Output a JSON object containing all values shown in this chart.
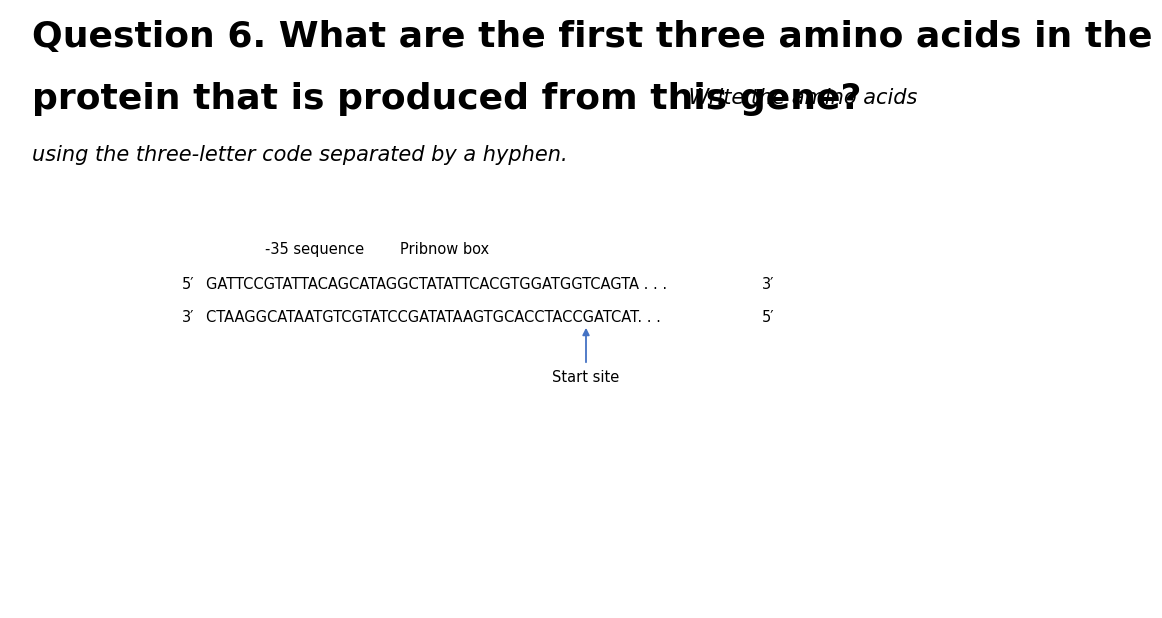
{
  "title_line1": "Question 6. What are the first three amino acids in the",
  "title_line2_bold": "protein that is produced from this gene?",
  "title_line2_italic": " Write the amino acids",
  "title_line3_italic": "using the three-letter code separated by a hyphen.",
  "label_35": "-35 sequence",
  "label_pribnow": "Pribnow box",
  "strand5_label": "5′",
  "strand5_seq": "GATTCCGTATTACAGCATAGGCTATATTCACGTGGATGGTCAGTA . . .",
  "strand5_end": "3′",
  "strand3_label": "3′",
  "strand3_seq": "CTAAGGCATAATGTCGTATCCGATATAAGTGCACCTACCGATCAT. . .",
  "strand3_end": "5′",
  "start_site_label": "Start site",
  "arrow_color": "#4472C4",
  "text_color": "#000000",
  "bg_color": "#ffffff",
  "title_bold_fontsize": 26,
  "title_italic_fontsize": 15,
  "seq_fontsize": 10.5,
  "label_fontsize": 10.5
}
